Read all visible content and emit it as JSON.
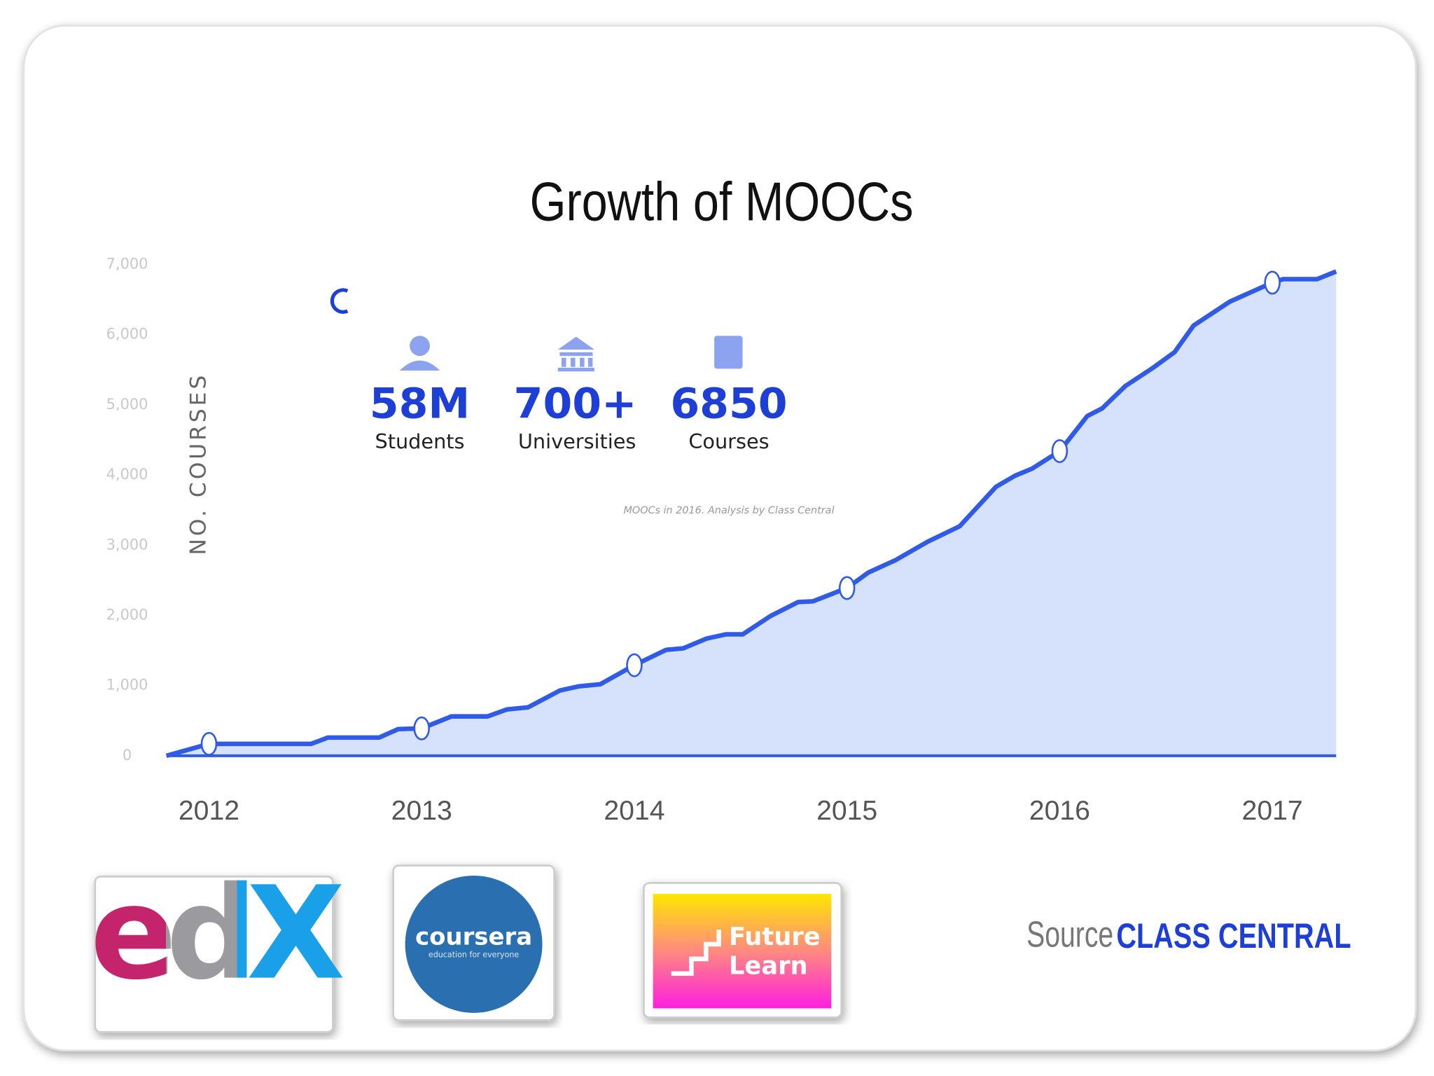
{
  "chart_data": {
    "type": "area",
    "title": "Growth of MOOCs",
    "y_label": "NO. COURSES",
    "x": [
      2011.8,
      2012.0,
      2012.48,
      2012.56,
      2012.8,
      2012.89,
      2013.0,
      2013.14,
      2013.31,
      2013.4,
      2013.5,
      2013.65,
      2013.74,
      2013.84,
      2014.0,
      2014.15,
      2014.23,
      2014.34,
      2014.43,
      2014.51,
      2014.64,
      2014.77,
      2014.84,
      2015.0,
      2015.1,
      2015.23,
      2015.38,
      2015.53,
      2015.7,
      2015.79,
      2015.87,
      2016.0,
      2016.13,
      2016.2,
      2016.31,
      2016.44,
      2016.54,
      2016.63,
      2016.8,
      2017.0,
      2017.05,
      2017.21,
      2017.3
    ],
    "values": [
      0,
      170,
      170,
      260,
      260,
      380,
      390,
      560,
      560,
      660,
      690,
      930,
      990,
      1020,
      1290,
      1510,
      1530,
      1670,
      1730,
      1730,
      1990,
      2190,
      2200,
      2390,
      2610,
      2790,
      3050,
      3270,
      3830,
      3990,
      4090,
      4340,
      4840,
      4950,
      5270,
      5530,
      5750,
      6130,
      6470,
      6740,
      6790,
      6790,
      6900
    ],
    "color": "#2f5be6",
    "fill": "#d6e2fb",
    "xlim": [
      2011.8,
      2017.3
    ],
    "xticks": [
      2012,
      2013,
      2014,
      2015,
      2016,
      2017
    ],
    "ylim": [
      0,
      7000
    ],
    "yticks": [
      0,
      {
        "value": 1000,
        "label": "1,000"
      },
      {
        "value": 2000,
        "label": "2,000"
      },
      {
        "value": 3000,
        "label": "3,000"
      },
      {
        "value": 4000,
        "label": "4,000"
      },
      {
        "value": 5000,
        "label": "5,000"
      },
      {
        "value": 6000,
        "label": "6,000"
      },
      {
        "value": 7000,
        "label": "7,000"
      }
    ],
    "grid": false
  },
  "stats": [
    {
      "value": "58M",
      "label": "Students"
    },
    {
      "value": "700+",
      "label": "Universities"
    },
    {
      "value": "6850",
      "label": "Courses"
    }
  ],
  "caption": "MOOCs in 2016. Analysis by Class Central",
  "logos": {
    "edx": "edX",
    "coursera": "coursera",
    "coursera_tagline": "education for everyone",
    "futurelearn": [
      "Future",
      "Learn"
    ]
  },
  "source": {
    "label": "Source",
    "name": "CLASS CENTRAL"
  }
}
